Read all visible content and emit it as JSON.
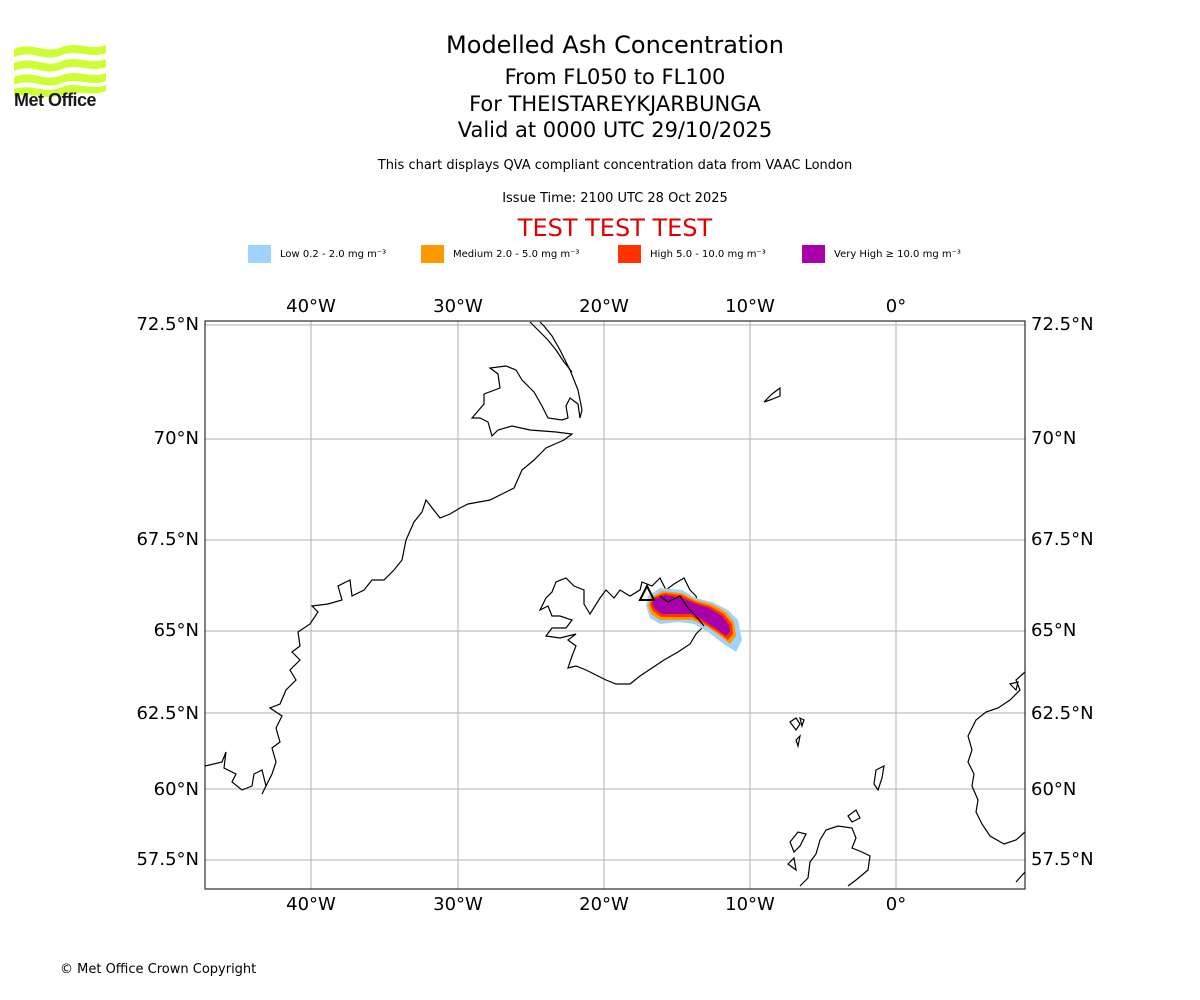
{
  "header": {
    "title": "Modelled Ash Concentration",
    "flight_levels": "From FL050 to FL100",
    "volcano": "For THEISTAREYKJARBUNGA",
    "valid": "Valid at 0000 UTC 29/10/2025",
    "subtitle": "This chart displays QVA compliant concentration data from VAAC London",
    "issue_time": "Issue Time: 2100 UTC 28 Oct 2025",
    "test_banner": "TEST TEST TEST"
  },
  "logo": {
    "text": "Met Office",
    "color": "#ccff33"
  },
  "legend": [
    {
      "label": "Low 0.2 - 2.0 mg m⁻³",
      "color": "#a0d2ff"
    },
    {
      "label": "Medium 2.0 - 5.0 mg m⁻³",
      "color": "#ff9900"
    },
    {
      "label": "High 5.0 - 10.0 mg m⁻³",
      "color": "#ff3300"
    },
    {
      "label": "Very High ≥ 10.0 mg m⁻³",
      "color": "#aa00aa"
    }
  ],
  "map": {
    "lon_ticks": [
      "40°W",
      "30°W",
      "20°W",
      "10°W",
      "0°"
    ],
    "lat_ticks": [
      "72.5°N",
      "70°N",
      "67.5°N",
      "65°N",
      "62.5°N",
      "60°N",
      "57.5°N"
    ],
    "gridlines": true
  },
  "footer": "© Met Office Crown Copyright"
}
